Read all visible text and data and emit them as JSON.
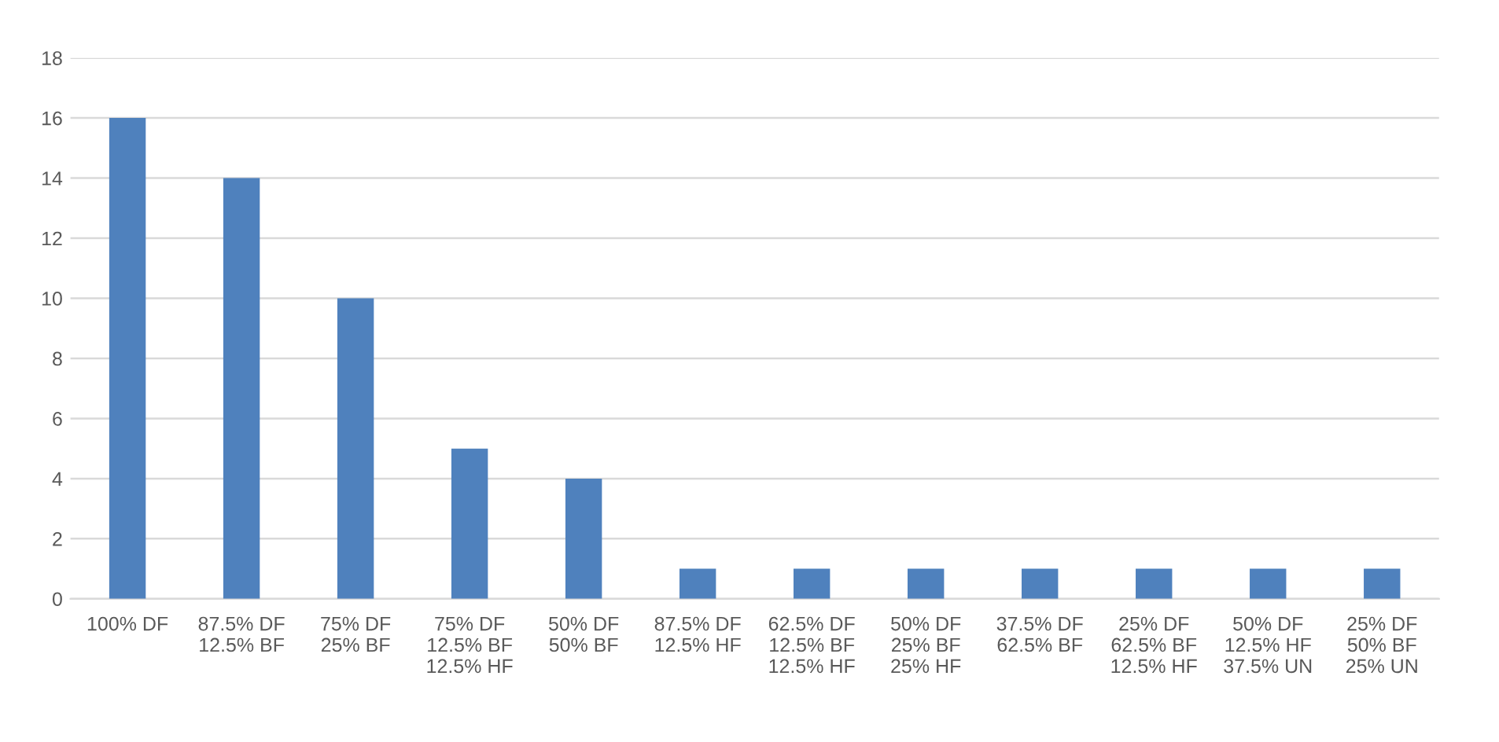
{
  "chart_data": {
    "type": "bar",
    "categories": [
      "100% DF",
      "87.5% DF\n12.5% BF",
      "75% DF\n25% BF",
      "75% DF\n12.5% BF\n12.5% HF",
      "50% DF\n50% BF",
      "87.5% DF\n12.5% HF",
      "62.5% DF\n12.5% BF\n12.5% HF",
      "50% DF\n25% BF\n25% HF",
      "37.5% DF\n62.5% BF",
      "25% DF\n62.5% BF\n12.5% HF",
      "50% DF\n12.5% HF\n37.5% UN",
      "25% DF\n50% BF\n25% UN"
    ],
    "values": [
      16,
      14,
      10,
      5,
      4,
      1,
      1,
      1,
      1,
      1,
      1,
      1
    ],
    "color": "#4f81bd",
    "ylim": [
      0,
      18
    ],
    "yticks": [
      0,
      2,
      4,
      6,
      8,
      10,
      12,
      14,
      16,
      18
    ],
    "grid": "y",
    "legend": false
  }
}
